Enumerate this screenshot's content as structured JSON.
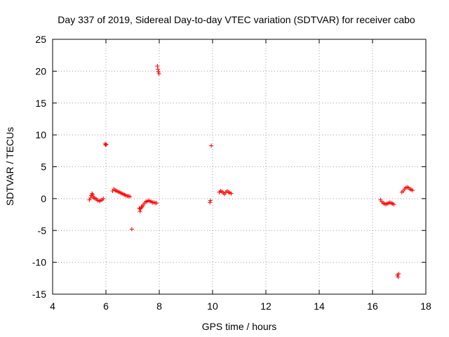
{
  "chart_data": {
    "type": "scatter",
    "title": "Day 337 of 2019, Sidereal Day-to-day VTEC variation (SDTVAR) for receiver cabo",
    "xlabel": "GPS time / hours",
    "ylabel": "SDTVAR / TECUs",
    "xlim": [
      4,
      18
    ],
    "ylim": [
      -15,
      25
    ],
    "x_ticks": [
      4,
      6,
      8,
      10,
      12,
      14,
      16,
      18
    ],
    "y_ticks": [
      -15,
      -10,
      -5,
      0,
      5,
      10,
      15,
      20,
      25
    ],
    "grid": true,
    "marker": "+",
    "color": "#ff0000",
    "series": [
      {
        "name": "SDTVAR",
        "points": [
          [
            5.38,
            -0.2
          ],
          [
            5.42,
            0.1
          ],
          [
            5.45,
            0.5
          ],
          [
            5.48,
            0.8
          ],
          [
            5.5,
            0.6
          ],
          [
            5.52,
            0.3
          ],
          [
            5.55,
            0.1
          ],
          [
            5.6,
            0.0
          ],
          [
            5.65,
            -0.1
          ],
          [
            5.7,
            -0.3
          ],
          [
            5.75,
            -0.4
          ],
          [
            5.8,
            -0.3
          ],
          [
            5.85,
            -0.2
          ],
          [
            5.9,
            0.0
          ],
          [
            5.97,
            8.6
          ],
          [
            5.99,
            8.4
          ],
          [
            6.01,
            8.5
          ],
          [
            6.25,
            1.2
          ],
          [
            6.3,
            1.5
          ],
          [
            6.35,
            1.3
          ],
          [
            6.4,
            1.2
          ],
          [
            6.45,
            1.1
          ],
          [
            6.5,
            1.0
          ],
          [
            6.55,
            0.9
          ],
          [
            6.6,
            0.8
          ],
          [
            6.65,
            0.7
          ],
          [
            6.7,
            0.6
          ],
          [
            6.75,
            0.5
          ],
          [
            6.8,
            0.4
          ],
          [
            6.85,
            0.4
          ],
          [
            6.9,
            0.3
          ],
          [
            6.97,
            -4.8
          ],
          [
            7.25,
            -1.5
          ],
          [
            7.28,
            -2.0
          ],
          [
            7.3,
            -1.6
          ],
          [
            7.33,
            -1.4
          ],
          [
            7.36,
            -1.2
          ],
          [
            7.4,
            -1.0
          ],
          [
            7.45,
            -0.7
          ],
          [
            7.5,
            -0.5
          ],
          [
            7.55,
            -0.4
          ],
          [
            7.6,
            -0.3
          ],
          [
            7.65,
            -0.4
          ],
          [
            7.7,
            -0.5
          ],
          [
            7.75,
            -0.6
          ],
          [
            7.8,
            -0.6
          ],
          [
            7.85,
            -0.7
          ],
          [
            7.9,
            -0.7
          ],
          [
            7.93,
            20.8
          ],
          [
            7.95,
            20.3
          ],
          [
            7.97,
            19.9
          ],
          [
            7.99,
            19.6
          ],
          [
            9.9,
            -0.6
          ],
          [
            9.92,
            -0.3
          ],
          [
            9.95,
            8.3
          ],
          [
            10.25,
            1.0
          ],
          [
            10.3,
            1.2
          ],
          [
            10.35,
            1.1
          ],
          [
            10.4,
            0.9
          ],
          [
            10.45,
            0.7
          ],
          [
            10.5,
            1.0
          ],
          [
            10.55,
            1.2
          ],
          [
            10.6,
            1.0
          ],
          [
            10.65,
            0.9
          ],
          [
            10.7,
            0.8
          ],
          [
            16.3,
            -0.2
          ],
          [
            16.35,
            -0.5
          ],
          [
            16.4,
            -0.7
          ],
          [
            16.45,
            -0.8
          ],
          [
            16.5,
            -0.9
          ],
          [
            16.55,
            -0.8
          ],
          [
            16.6,
            -0.7
          ],
          [
            16.65,
            -0.6
          ],
          [
            16.7,
            -0.7
          ],
          [
            16.75,
            -0.8
          ],
          [
            16.8,
            -0.9
          ],
          [
            16.93,
            -12.0
          ],
          [
            16.96,
            -12.3
          ],
          [
            16.98,
            -11.8
          ],
          [
            17.1,
            1.0
          ],
          [
            17.15,
            1.2
          ],
          [
            17.2,
            1.5
          ],
          [
            17.25,
            1.7
          ],
          [
            17.3,
            1.8
          ],
          [
            17.35,
            1.7
          ],
          [
            17.4,
            1.5
          ],
          [
            17.45,
            1.4
          ],
          [
            17.5,
            1.3
          ]
        ]
      }
    ]
  }
}
